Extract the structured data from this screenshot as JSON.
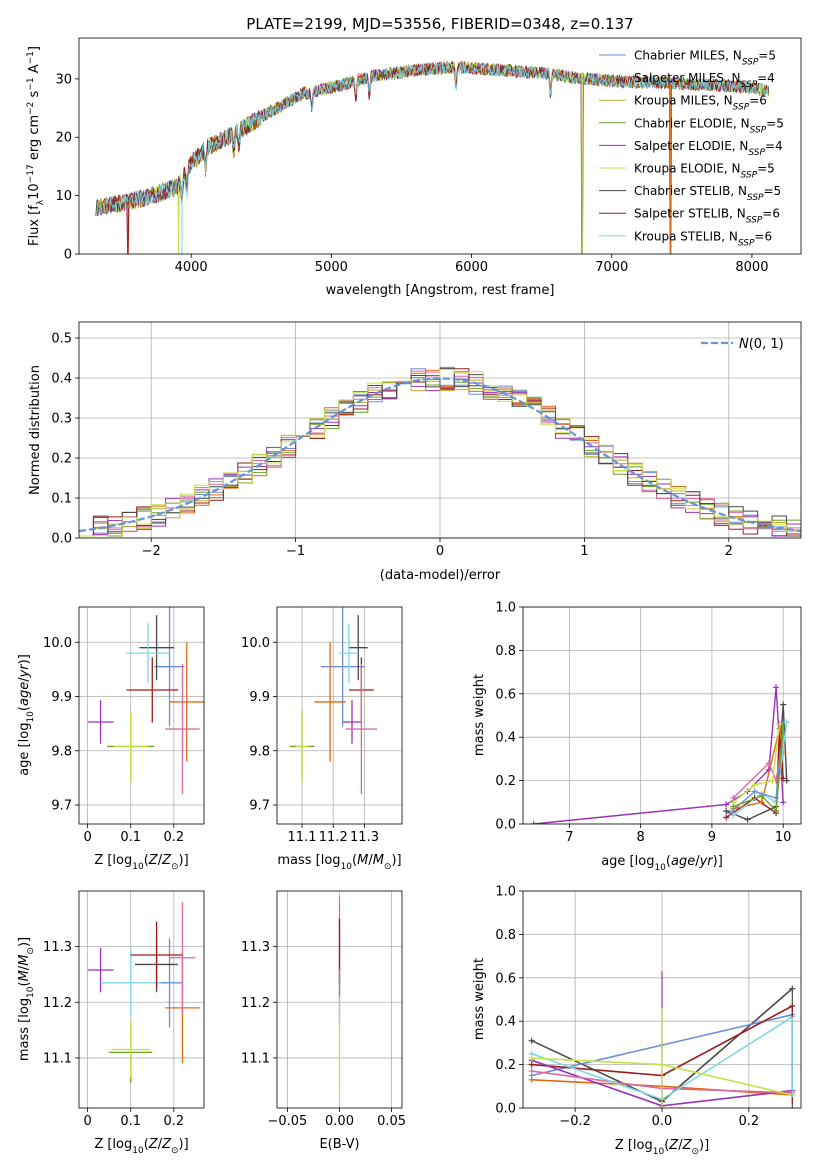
{
  "figure": {
    "title": "PLATE=2199, MJD=53556, FIBERID=0348, z=0.137"
  },
  "series_names": [
    "Chabrier MILES, N_SSP=5",
    "Salpeter MILES, N_SSP=4",
    "Kroupa MILES, N_SSP=6",
    "Chabrier ELODIE, N_SSP=5",
    "Salpeter ELODIE, N_SSP=4",
    "Kroupa ELODIE, N_SSP=5",
    "Chabrier STELIB, N_SSP=5",
    "Salpeter STELIB, N_SSP=6",
    "Kroupa STELIB, N_SSP=6"
  ],
  "colors": {
    "series": [
      "#1f77b4",
      "#ff7f0e",
      "#2ca02c",
      "#d62728",
      "#9467bd",
      "#8c564b",
      "#e377c2",
      "#7f7f7f",
      "#bcbd22",
      "#17becf",
      "#6a8fd8",
      "#e06a10",
      "#6aa22a",
      "#9b1c1c",
      "#9932b8",
      "#b8b02a",
      "#d86aa8",
      "#4a4a4a",
      "#c8e04a",
      "#7dd8e8"
    ],
    "grid": "#b0b0b0",
    "normal_curve": "#6495d8"
  },
  "chart_data": [
    {
      "id": "spectrum",
      "type": "line",
      "xlabel": "wavelength [Angstrom, rest frame]",
      "ylabel": "Flux [f_λ10^-17 erg cm^-2 s^-1 A^-1]",
      "xlim": [
        3200,
        8350
      ],
      "ylim": [
        0,
        37
      ],
      "xticks": [
        4000,
        5000,
        6000,
        7000,
        8000
      ],
      "yticks": [
        0,
        10,
        20,
        30
      ],
      "grid": false,
      "legend": "top-right",
      "continuum": {
        "x": [
          3300,
          3500,
          3700,
          3900,
          4000,
          4100,
          4300,
          4500,
          4800,
          5000,
          5300,
          5600,
          5900,
          6200,
          6500,
          6800,
          7100,
          7400,
          7700,
          8000,
          8100
        ],
        "y": [
          8.0,
          8.7,
          9.8,
          11.5,
          15.5,
          18.0,
          20.5,
          23.5,
          27.5,
          28.5,
          30.5,
          31.5,
          32.0,
          31.5,
          31.0,
          30.0,
          29.5,
          29.3,
          29.0,
          28.5,
          28.0
        ]
      },
      "dips": [
        {
          "x": 3550,
          "y": 0
        },
        {
          "x": 3910,
          "y": 0
        },
        {
          "x": 3935,
          "y": 0
        },
        {
          "x": 6790,
          "y": 0
        },
        {
          "x": 7420,
          "y": 0
        }
      ]
    },
    {
      "id": "residual_hist",
      "type": "step",
      "xlabel": "(data-model)/error",
      "ylabel": "Normed distribution",
      "xlim": [
        -2.5,
        2.5
      ],
      "ylim": [
        0,
        0.54
      ],
      "xticks": [
        -2,
        -1,
        0,
        1,
        2
      ],
      "yticks": [
        0.0,
        0.1,
        0.2,
        0.3,
        0.4,
        0.5
      ],
      "grid": true,
      "legend": "top-right",
      "legend_label": "N(0,1)",
      "bin_width": 0.1,
      "bin_start": -2.5
    },
    {
      "id": "age_vs_Z",
      "type": "errorbar",
      "xlabel": "Z [log10(Z/Z_⊙)]",
      "ylabel": "age [log10(age/yr)]",
      "xlim": [
        -0.02,
        0.27
      ],
      "ylim": [
        9.665,
        10.065
      ],
      "xticks": [
        0.0,
        0.1,
        0.2
      ],
      "yticks": [
        9.7,
        9.8,
        9.9,
        10.0
      ],
      "grid": true,
      "points": [
        {
          "x": 0.1,
          "y": 9.808,
          "xerr": 0.055,
          "yerr": 0.065,
          "c": 12
        },
        {
          "x": 0.1,
          "y": 9.808,
          "xerr": 0.04,
          "yerr": 0.065,
          "c": 18
        },
        {
          "x": 0.03,
          "y": 9.853,
          "xerr": 0.03,
          "yerr": 0.04,
          "c": 14
        },
        {
          "x": 0.19,
          "y": 9.955,
          "xerr": 0.035,
          "yerr": 0.11,
          "c": 10
        },
        {
          "x": 0.16,
          "y": 9.99,
          "xerr": 0.04,
          "yerr": 0.06,
          "c": 17
        },
        {
          "x": 0.14,
          "y": 9.98,
          "xerr": 0.05,
          "yerr": 0.055,
          "c": 19
        },
        {
          "x": 0.15,
          "y": 9.912,
          "xerr": 0.06,
          "yerr": 0.06,
          "c": 13
        },
        {
          "x": 0.23,
          "y": 9.89,
          "xerr": 0.04,
          "yerr": 0.11,
          "c": 11
        },
        {
          "x": 0.22,
          "y": 9.84,
          "xerr": 0.04,
          "yerr": 0.12,
          "c": 16
        }
      ]
    },
    {
      "id": "age_vs_mass",
      "type": "errorbar",
      "xlabel": "mass [log10(M/M_⊙)]",
      "ylabel": "",
      "xlim": [
        11.02,
        11.42
      ],
      "ylim": [
        9.665,
        10.065
      ],
      "xticks": [
        11.1,
        11.2,
        11.3
      ],
      "xtick_labels": [
        "11.1",
        "11.2",
        "11.3"
      ],
      "yticks": [
        9.7,
        9.8,
        9.9,
        10.0
      ],
      "grid": true,
      "points": [
        {
          "x": 11.1,
          "y": 9.808,
          "xerr": 0.04,
          "yerr": 0.065,
          "c": 12
        },
        {
          "x": 11.1,
          "y": 9.808,
          "xerr": 0.02,
          "yerr": 0.065,
          "c": 18
        },
        {
          "x": 11.26,
          "y": 9.853,
          "xerr": 0.03,
          "yerr": 0.04,
          "c": 14
        },
        {
          "x": 11.23,
          "y": 9.955,
          "xerr": 0.07,
          "yerr": 0.11,
          "c": 10
        },
        {
          "x": 11.28,
          "y": 9.99,
          "xerr": 0.03,
          "yerr": 0.06,
          "c": 17
        },
        {
          "x": 11.25,
          "y": 9.98,
          "xerr": 0.03,
          "yerr": 0.055,
          "c": 19
        },
        {
          "x": 11.29,
          "y": 9.912,
          "xerr": 0.04,
          "yerr": 0.06,
          "c": 13
        },
        {
          "x": 11.19,
          "y": 9.89,
          "xerr": 0.05,
          "yerr": 0.11,
          "c": 11
        },
        {
          "x": 11.29,
          "y": 9.84,
          "xerr": 0.05,
          "yerr": 0.12,
          "c": 16
        }
      ]
    },
    {
      "id": "weight_vs_age",
      "type": "line",
      "xlabel": "age [log10(age/yr)]",
      "ylabel": "mass weight",
      "xlim": [
        6.35,
        10.25
      ],
      "ylim": [
        0,
        1.0
      ],
      "xticks": [
        7,
        8,
        9,
        10
      ],
      "yticks": [
        0.0,
        0.2,
        0.4,
        0.6,
        0.8,
        1.0
      ],
      "grid": true
    },
    {
      "id": "mass_vs_Z",
      "type": "errorbar",
      "xlabel": "Z [log10(Z/Z_⊙)]",
      "ylabel": "mass [log10(M/M_⊙)]",
      "xlim": [
        -0.02,
        0.27
      ],
      "ylim": [
        11.01,
        11.4
      ],
      "xticks": [
        0.0,
        0.1,
        0.2
      ],
      "yticks": [
        11.1,
        11.2,
        11.3
      ],
      "grid": true,
      "points": [
        {
          "x": 0.1,
          "y": 11.11,
          "xerr": 0.05,
          "yerr": 0.055,
          "c": 12
        },
        {
          "x": 0.1,
          "y": 11.115,
          "xerr": 0.045,
          "yerr": 0.05,
          "c": 18
        },
        {
          "x": 0.03,
          "y": 11.258,
          "xerr": 0.03,
          "yerr": 0.04,
          "c": 14
        },
        {
          "x": 0.19,
          "y": 11.235,
          "xerr": 0.03,
          "yerr": 0.08,
          "c": 10
        },
        {
          "x": 0.16,
          "y": 11.268,
          "xerr": 0.05,
          "yerr": 0.05,
          "c": 17
        },
        {
          "x": 0.1,
          "y": 11.235,
          "xerr": 0.07,
          "yerr": 0.06,
          "c": 19
        },
        {
          "x": 0.16,
          "y": 11.285,
          "xerr": 0.06,
          "yerr": 0.06,
          "c": 13
        },
        {
          "x": 0.22,
          "y": 11.19,
          "xerr": 0.04,
          "yerr": 0.1,
          "c": 11
        },
        {
          "x": 0.22,
          "y": 11.28,
          "xerr": 0.03,
          "yerr": 0.1,
          "c": 16
        }
      ]
    },
    {
      "id": "mass_vs_ebv",
      "type": "errorbar",
      "xlabel": "E(B-V)",
      "ylabel": "",
      "xlim": [
        -0.06,
        0.06
      ],
      "ylim": [
        11.01,
        11.4
      ],
      "xticks": [
        -0.05,
        0.0,
        0.05
      ],
      "xtick_labels": [
        "−0.05",
        "0.00",
        "0.05"
      ],
      "yticks": [
        11.1,
        11.2,
        11.3
      ],
      "grid": true,
      "points": [
        {
          "x": 0.0,
          "y": 11.28,
          "xerr": 0,
          "yerr": 0.11,
          "c": 16
        },
        {
          "x": 0.0,
          "y": 11.29,
          "xerr": 0,
          "yerr": 0.06,
          "c": 13
        },
        {
          "x": 0.0,
          "y": 11.21,
          "xerr": 0,
          "yerr": 0.05,
          "c": 10
        },
        {
          "x": 0.0,
          "y": 11.12,
          "xerr": 0,
          "yerr": 0.09,
          "c": 18
        }
      ]
    },
    {
      "id": "weight_vs_Z",
      "type": "line",
      "xlabel": "Z [log10(Z/Z_⊙)]",
      "ylabel": "mass weight",
      "xlim": [
        -0.32,
        0.32
      ],
      "ylim": [
        0,
        1.0
      ],
      "xticks": [
        -0.2,
        0.0,
        0.2
      ],
      "xtick_labels": [
        "−0.2",
        "0.0",
        "0.2"
      ],
      "yticks": [
        0.0,
        0.2,
        0.4,
        0.6,
        0.8,
        1.0
      ],
      "grid": true
    }
  ]
}
